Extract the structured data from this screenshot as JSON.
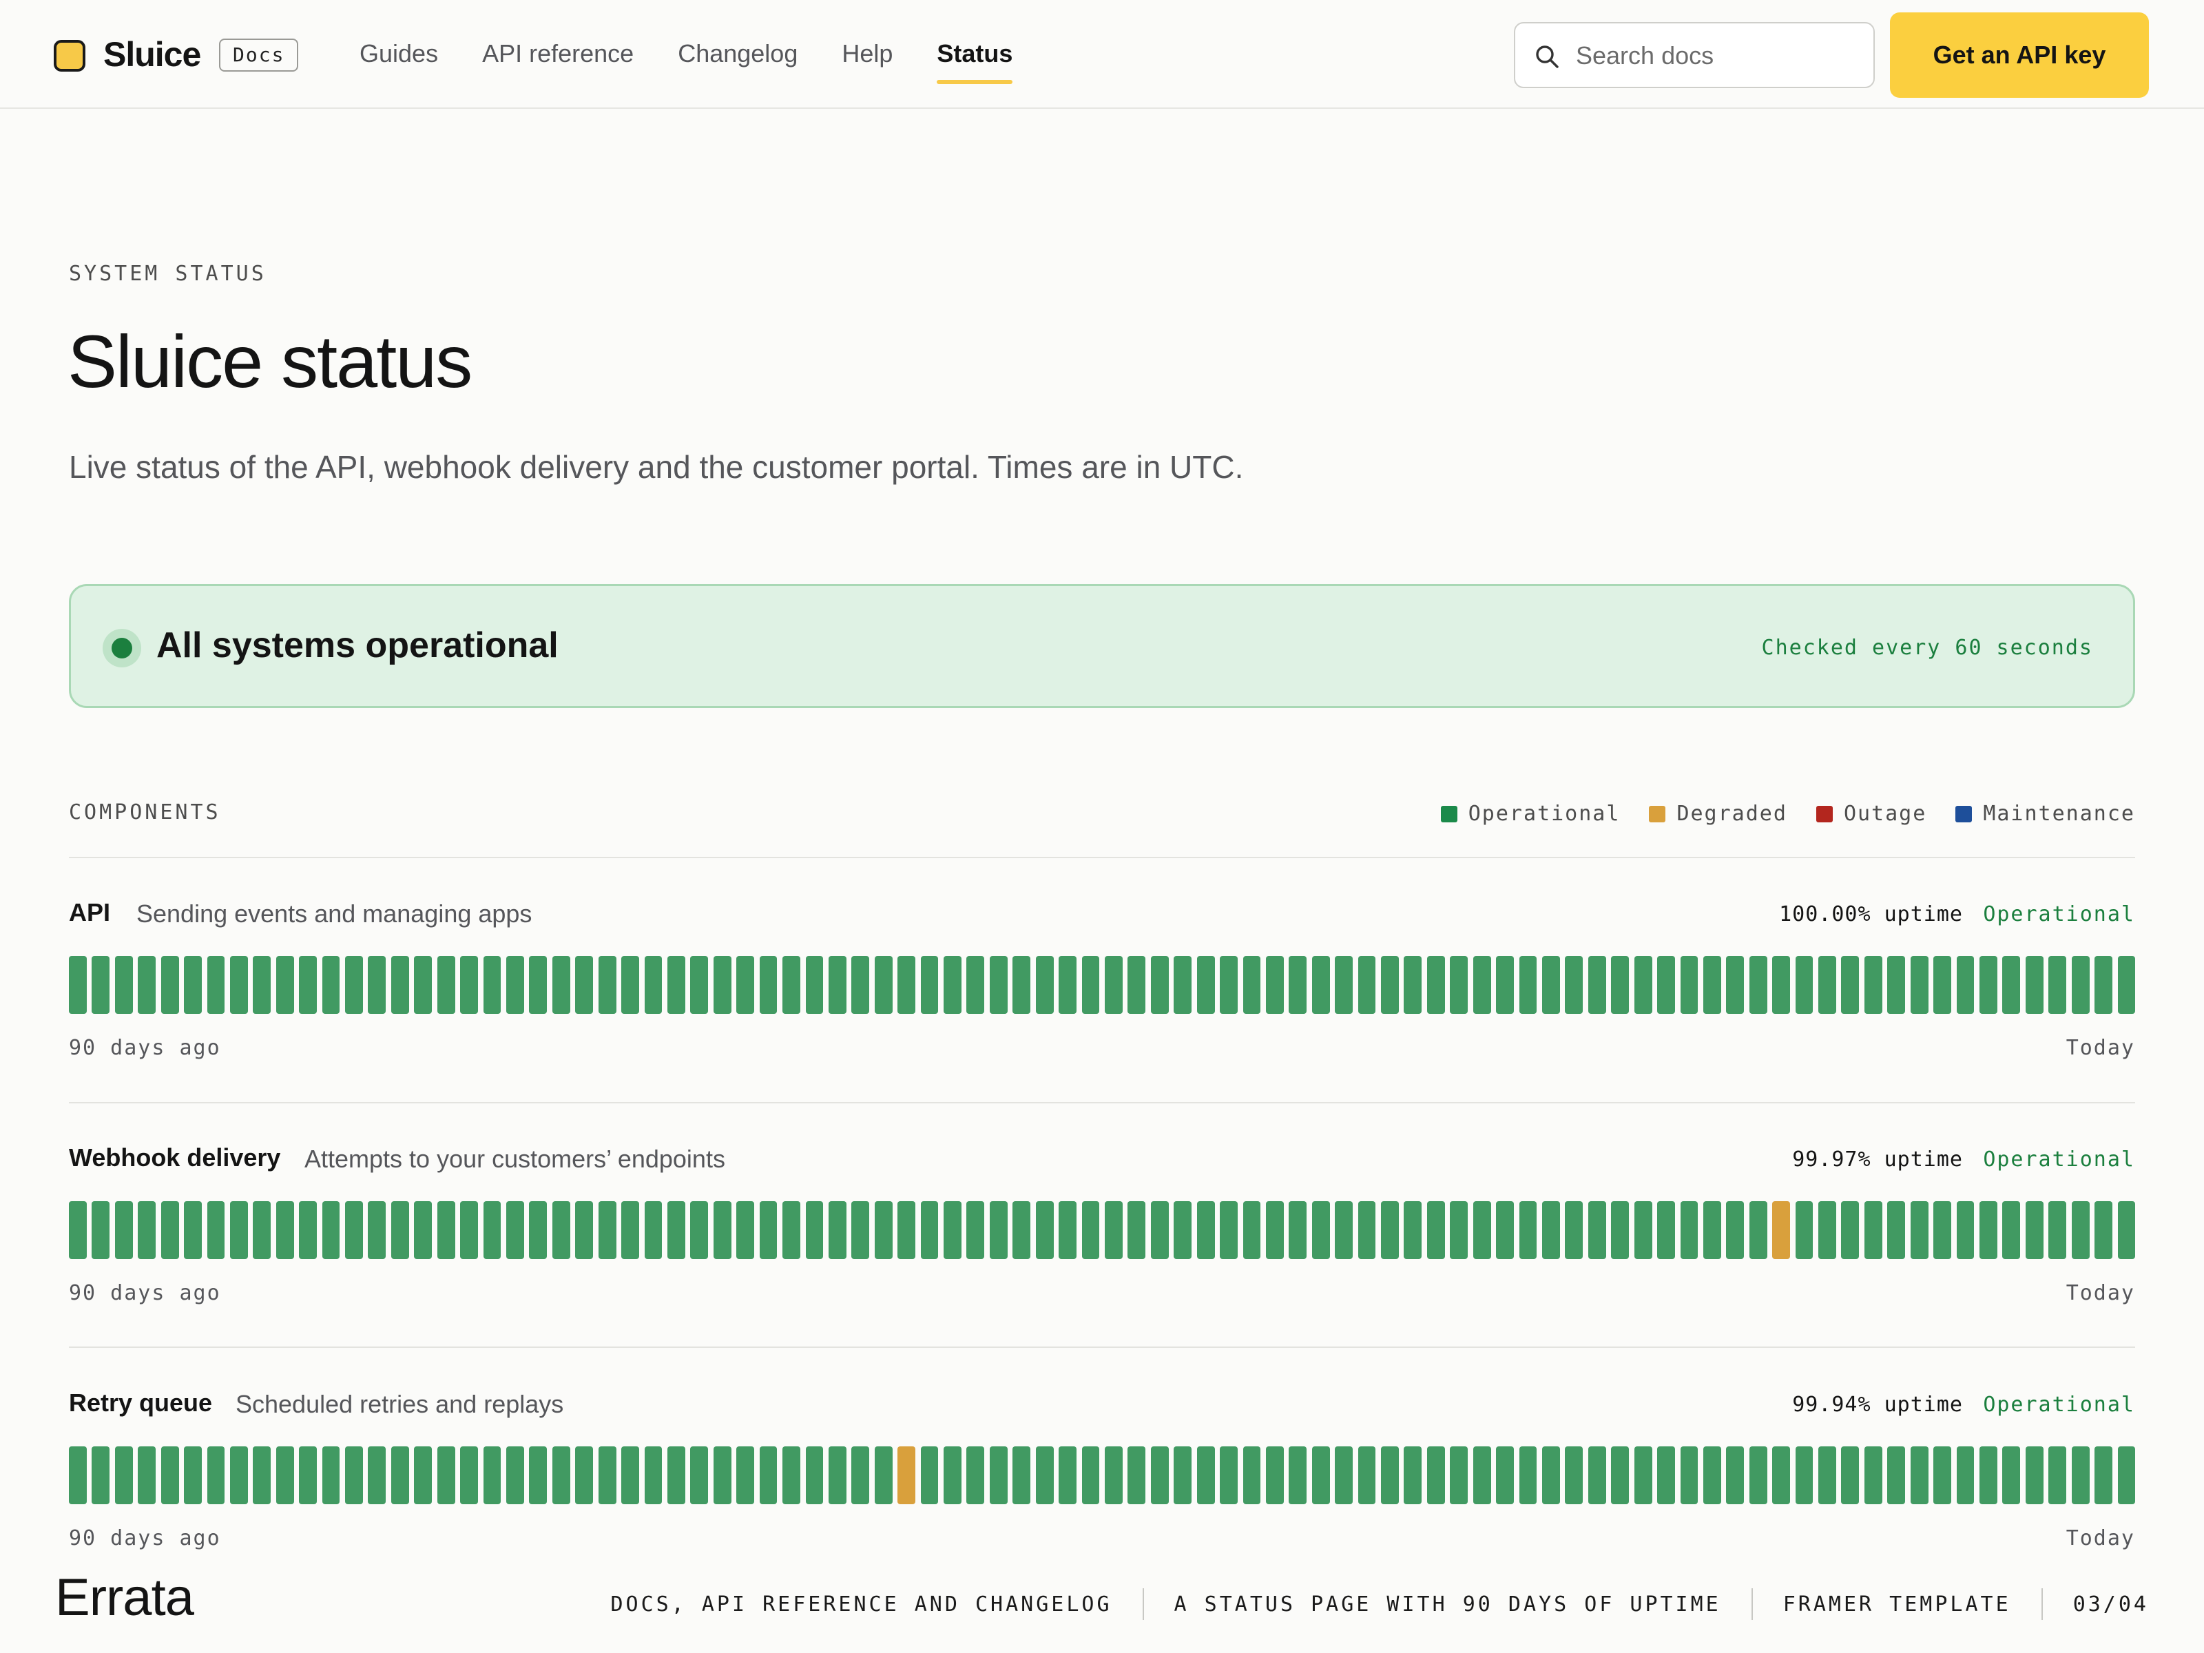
{
  "header": {
    "brand": "Sluice",
    "badge": "Docs",
    "nav": [
      {
        "label": "Guides",
        "active": false
      },
      {
        "label": "API reference",
        "active": false
      },
      {
        "label": "Changelog",
        "active": false
      },
      {
        "label": "Help",
        "active": false
      },
      {
        "label": "Status",
        "active": true
      }
    ],
    "search_placeholder": "Search docs",
    "cta": "Get an API key"
  },
  "hero": {
    "eyebrow": "SYSTEM STATUS",
    "title": "Sluice status",
    "subtitle": "Live status of the API, webhook delivery and the customer portal. Times are in UTC."
  },
  "banner": {
    "title": "All systems operational",
    "note": "Checked every 60 seconds"
  },
  "components_section": {
    "heading": "COMPONENTS",
    "legend": [
      {
        "label": "Operational",
        "color": "#1b8a4a"
      },
      {
        "label": "Degraded",
        "color": "#d9a03c"
      },
      {
        "label": "Outage",
        "color": "#b3261e"
      },
      {
        "label": "Maintenance",
        "color": "#1e4f9a"
      }
    ],
    "axis_start": "90 days ago",
    "axis_end": "Today",
    "days": 90
  },
  "components": [
    {
      "name": "API",
      "description": "Sending events and managing apps",
      "uptime": "100.00% uptime",
      "state": "Operational",
      "incidents": []
    },
    {
      "name": "Webhook delivery",
      "description": "Attempts to your customers’ endpoints",
      "uptime": "99.97% uptime",
      "state": "Operational",
      "incidents": [
        {
          "day_index": 74,
          "status": "degraded"
        }
      ]
    },
    {
      "name": "Retry queue",
      "description": "Scheduled retries and replays",
      "uptime": "99.94% uptime",
      "state": "Operational",
      "incidents": [
        {
          "day_index": 36,
          "status": "degraded"
        }
      ]
    }
  ],
  "footer": {
    "brand": "Errata",
    "items": [
      "DOCS, API REFERENCE AND CHANGELOG",
      "A STATUS PAGE WITH 90 DAYS OF UPTIME",
      "FRAMER TEMPLATE",
      "03/04"
    ]
  }
}
